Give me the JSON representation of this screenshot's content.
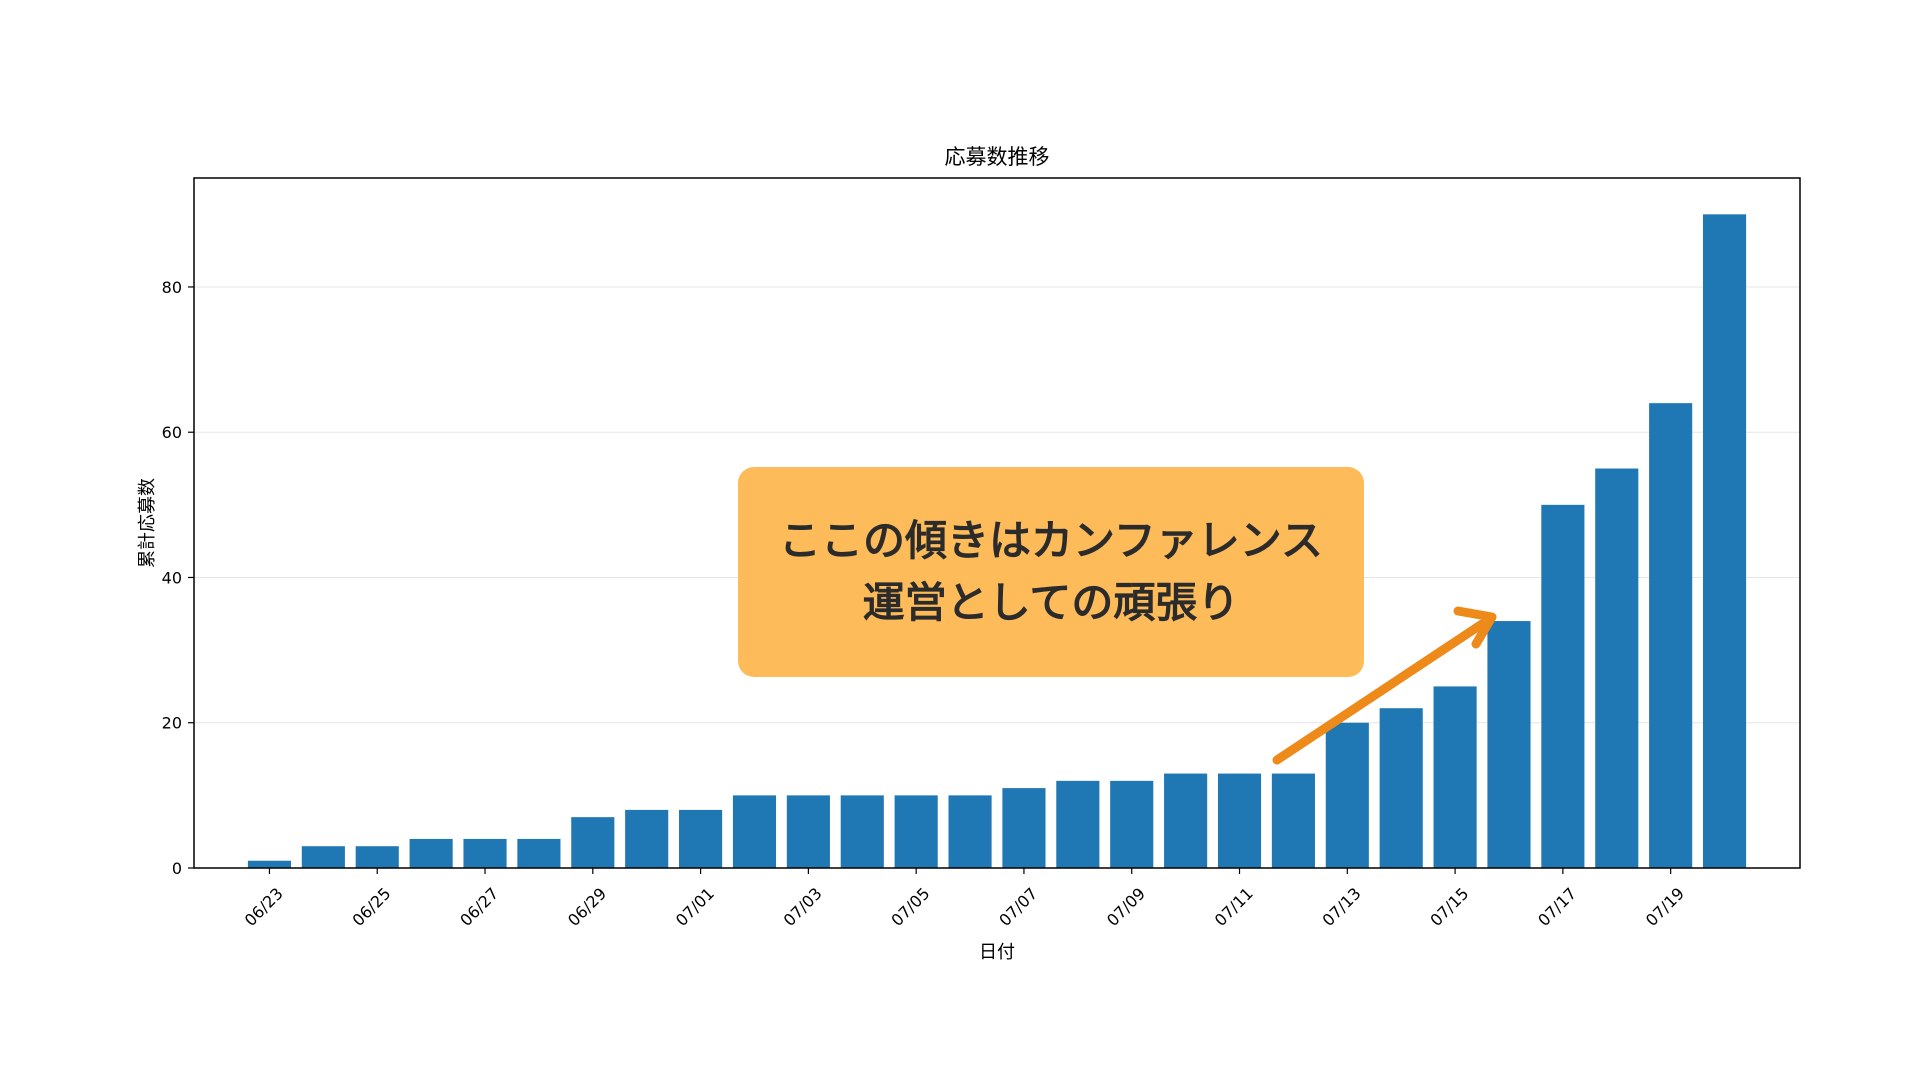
{
  "chart_data": {
    "type": "bar",
    "title": "応募数推移",
    "xlabel": "日付",
    "ylabel": "累計応募数",
    "ylim": [
      0,
      95
    ],
    "yticks": [
      0,
      20,
      40,
      60,
      80
    ],
    "grid": "horizontal",
    "bar_color": "#1f77b4",
    "categories": [
      "06/23",
      "06/24",
      "06/25",
      "06/26",
      "06/27",
      "06/28",
      "06/29",
      "06/30",
      "07/01",
      "07/02",
      "07/03",
      "07/04",
      "07/05",
      "07/06",
      "07/07",
      "07/08",
      "07/09",
      "07/10",
      "07/11",
      "07/12",
      "07/13",
      "07/14",
      "07/15",
      "07/16",
      "07/17",
      "07/18",
      "07/19",
      "07/20"
    ],
    "values": [
      1,
      3,
      3,
      4,
      4,
      4,
      7,
      8,
      8,
      10,
      10,
      10,
      10,
      10,
      11,
      12,
      12,
      13,
      13,
      13,
      20,
      22,
      25,
      34,
      50,
      55,
      64,
      90
    ],
    "xtick_labels": [
      "06/23",
      "06/25",
      "06/27",
      "06/29",
      "07/01",
      "07/03",
      "07/05",
      "07/07",
      "07/09",
      "07/11",
      "07/13",
      "07/15",
      "07/17",
      "07/19"
    ]
  },
  "annotation": {
    "line1": "ここの傾きはカンファレンス",
    "line2": "運営としての頑張り",
    "box_color": "#fdbb5a",
    "arrow_color": "#ee8a1a"
  }
}
